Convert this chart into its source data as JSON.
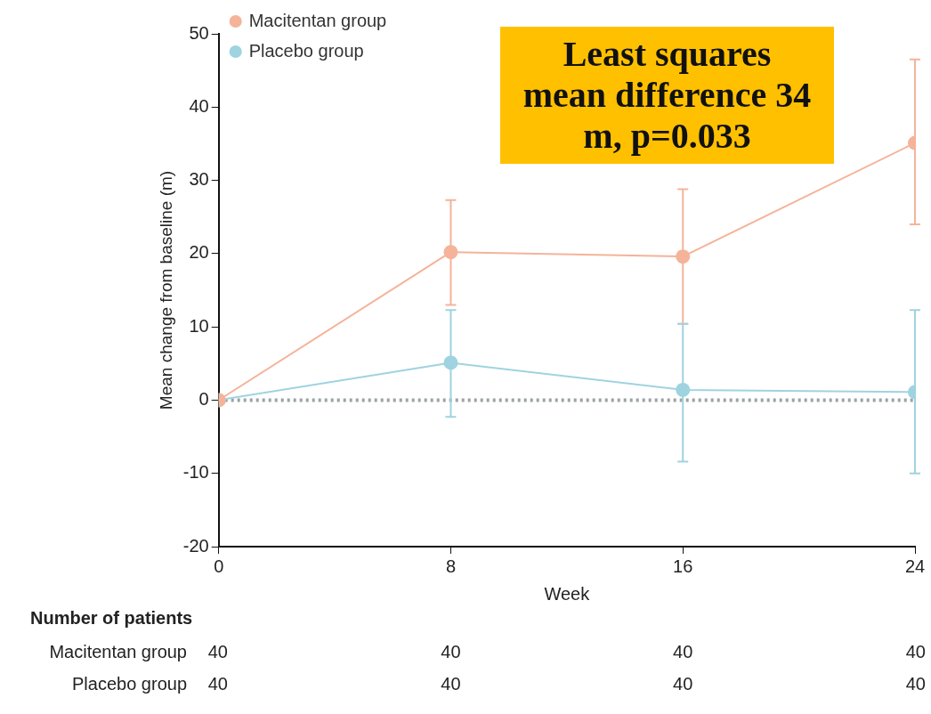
{
  "chart_data": {
    "type": "line",
    "xlabel": "Week",
    "ylabel": "Mean change from baseline (m)",
    "x": [
      0,
      8,
      16,
      24
    ],
    "xlim": [
      0,
      24
    ],
    "xticks": [
      0,
      8,
      16,
      24
    ],
    "ylim": [
      -20,
      50
    ],
    "yticks": [
      -20,
      -10,
      0,
      10,
      20,
      30,
      40,
      50
    ],
    "grid": false,
    "legend": "top left",
    "marker": "circle",
    "line_style": "solid",
    "series": [
      {
        "name": "Macitentan group",
        "color": "#f5b39a",
        "values": [
          0,
          20.2,
          19.6,
          35.1
        ],
        "errors": [
          null,
          [
            13.0,
            27.3
          ],
          [
            10.4,
            28.8
          ],
          [
            24.0,
            46.5
          ]
        ]
      },
      {
        "name": "Placebo group",
        "color": "#9fd3e0",
        "values": [
          0,
          5.1,
          1.4,
          1.1
        ],
        "errors": [
          null,
          [
            -2.3,
            12.3
          ],
          [
            -8.4,
            10.4
          ],
          [
            -10.0,
            12.3
          ]
        ]
      }
    ],
    "ref_lines": [
      {
        "axis": "y",
        "value": 0,
        "color": "#9aa3a6",
        "line_style": "dotted"
      }
    ],
    "annotations": [
      "Least squares mean difference 34 m, p=0.033",
      "Number of patients",
      "Macitentan group",
      "40",
      "40",
      "40",
      "40",
      "Placebo group",
      "40",
      "40",
      "40",
      "40"
    ]
  }
}
